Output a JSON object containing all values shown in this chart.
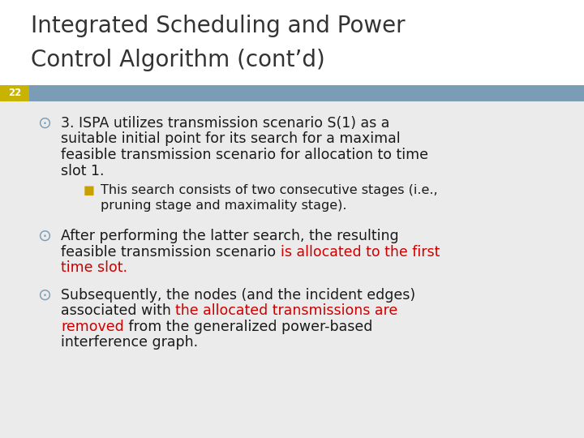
{
  "title_line1": "Integrated Scheduling and Power",
  "title_line2": "Control Algorithm (cont’d)",
  "slide_number": "22",
  "slide_number_bg": "#C8B400",
  "header_bar_color": "#7A9DB5",
  "background_color": "#EBEBEB",
  "title_bg_color": "#FFFFFF",
  "title_color": "#333333",
  "title_fontsize": 20,
  "body_color": "#1A1A1A",
  "body_fontsize": 12.5,
  "sub_fontsize": 11.5,
  "red_color": "#CC0000",
  "bullet_color": "#7A9DB5",
  "sub_bullet_color": "#C8A000"
}
